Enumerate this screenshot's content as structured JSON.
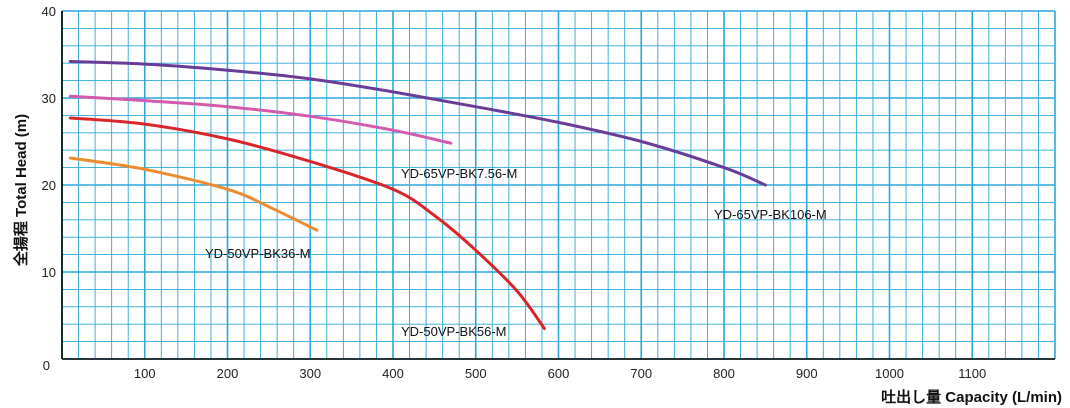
{
  "chart_data": {
    "type": "line",
    "xlabel": "吐出し量 Capacity (L/min)",
    "ylabel": "全揚程 Total Head (m)",
    "xlim": [
      0,
      1200
    ],
    "ylim": [
      0,
      40
    ],
    "x_ticks": [
      100,
      200,
      300,
      400,
      500,
      600,
      700,
      800,
      900,
      1000,
      1100
    ],
    "y_ticks": [
      0,
      10,
      20,
      30,
      40
    ],
    "grid": true,
    "colors": {
      "grid": "#2aa8d8",
      "axis": "#000000"
    },
    "series": [
      {
        "name": "YD-65VP-BK106-M",
        "color": "#6a3c98",
        "points": [
          [
            10,
            34.2
          ],
          [
            100,
            33.9
          ],
          [
            200,
            33.2
          ],
          [
            300,
            32.2
          ],
          [
            400,
            30.7
          ],
          [
            500,
            29.0
          ],
          [
            600,
            27.2
          ],
          [
            700,
            25.0
          ],
          [
            800,
            22.0
          ],
          [
            850,
            20.0
          ]
        ]
      },
      {
        "name": "YD-65VP-BK7.56-M",
        "color": "#d45ab0",
        "points": [
          [
            10,
            30.2
          ],
          [
            100,
            29.7
          ],
          [
            200,
            29.0
          ],
          [
            300,
            27.9
          ],
          [
            400,
            26.3
          ],
          [
            470,
            24.8
          ]
        ]
      },
      {
        "name": "YD-50VP-BK56-M",
        "color": "#d8262a",
        "points": [
          [
            10,
            27.7
          ],
          [
            100,
            27.0
          ],
          [
            200,
            25.3
          ],
          [
            300,
            22.7
          ],
          [
            400,
            19.5
          ],
          [
            450,
            16.5
          ],
          [
            500,
            12.5
          ],
          [
            550,
            7.8
          ],
          [
            583,
            3.5
          ]
        ]
      },
      {
        "name": "YD-50VP-BK36-M",
        "color": "#ef8a2e",
        "points": [
          [
            10,
            23.1
          ],
          [
            100,
            21.8
          ],
          [
            200,
            19.5
          ],
          [
            250,
            17.5
          ],
          [
            308,
            14.8
          ]
        ]
      }
    ]
  },
  "labels": {
    "bk106": "YD-65VP-BK106-M",
    "bk756": "YD-65VP-BK7.56-M",
    "bk56": "YD-50VP-BK56-M",
    "bk36": "YD-50VP-BK36-M"
  }
}
